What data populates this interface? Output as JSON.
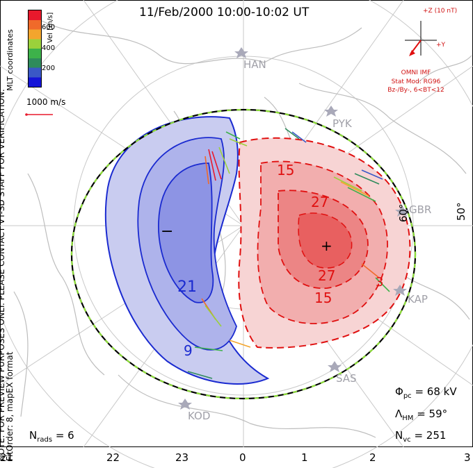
{
  "title": "11/Feb/2000 10:00-10:02 UT",
  "side_note": "NOTE: FOR PREVIEW PURPOSES ONLY. PLEASE CONTACT VT-SD STAFF FOR VERIFICATION.",
  "fit_order": "FitOrder: 8, mapEX format",
  "coords": "MLT coordinates",
  "colorbar": {
    "label": "Vel [m/s]",
    "ticks": [
      "600",
      "400",
      "200"
    ],
    "colors": [
      "#e8192c",
      "#f06a2a",
      "#f3a52d",
      "#9bd13b",
      "#3db24a",
      "#2f8b5c",
      "#3a58c6",
      "#1414d8"
    ]
  },
  "scale_vector": "1000 m/s",
  "imf": {
    "axis_z": "+Z (10 nT)",
    "axis_y": "+Y",
    "label": "OMNI IMF",
    "stat_mod": "Stat Mod: RG96",
    "condition": "Bz-/By-, 6<BT<12"
  },
  "stations": [
    "HAN",
    "PYK",
    "GBR",
    "KAP",
    "SAS",
    "KOD"
  ],
  "lat_labels": [
    "60°",
    "50°"
  ],
  "contours": {
    "neg_labels": [
      "21",
      "9"
    ],
    "pos_labels": [
      "15",
      "27",
      "27",
      "15",
      "3"
    ],
    "min_marker": "−",
    "max_marker": "+"
  },
  "stats": {
    "phi_pc_label": "Φ",
    "phi_pc_sub": "pc",
    "phi_pc_value": "= 68 kV",
    "lambda_label": "Λ",
    "lambda_sub": "HM",
    "lambda_value": "= 59°",
    "nvc_label": "N",
    "nvc_sub": "vc",
    "nvc_value": "= 251",
    "nrads_label": "N",
    "nrads_sub": "rads",
    "nrads_value": "= 6"
  },
  "mlt_ticks": [
    "21",
    "22",
    "23",
    "0",
    "1",
    "2",
    "3"
  ]
}
